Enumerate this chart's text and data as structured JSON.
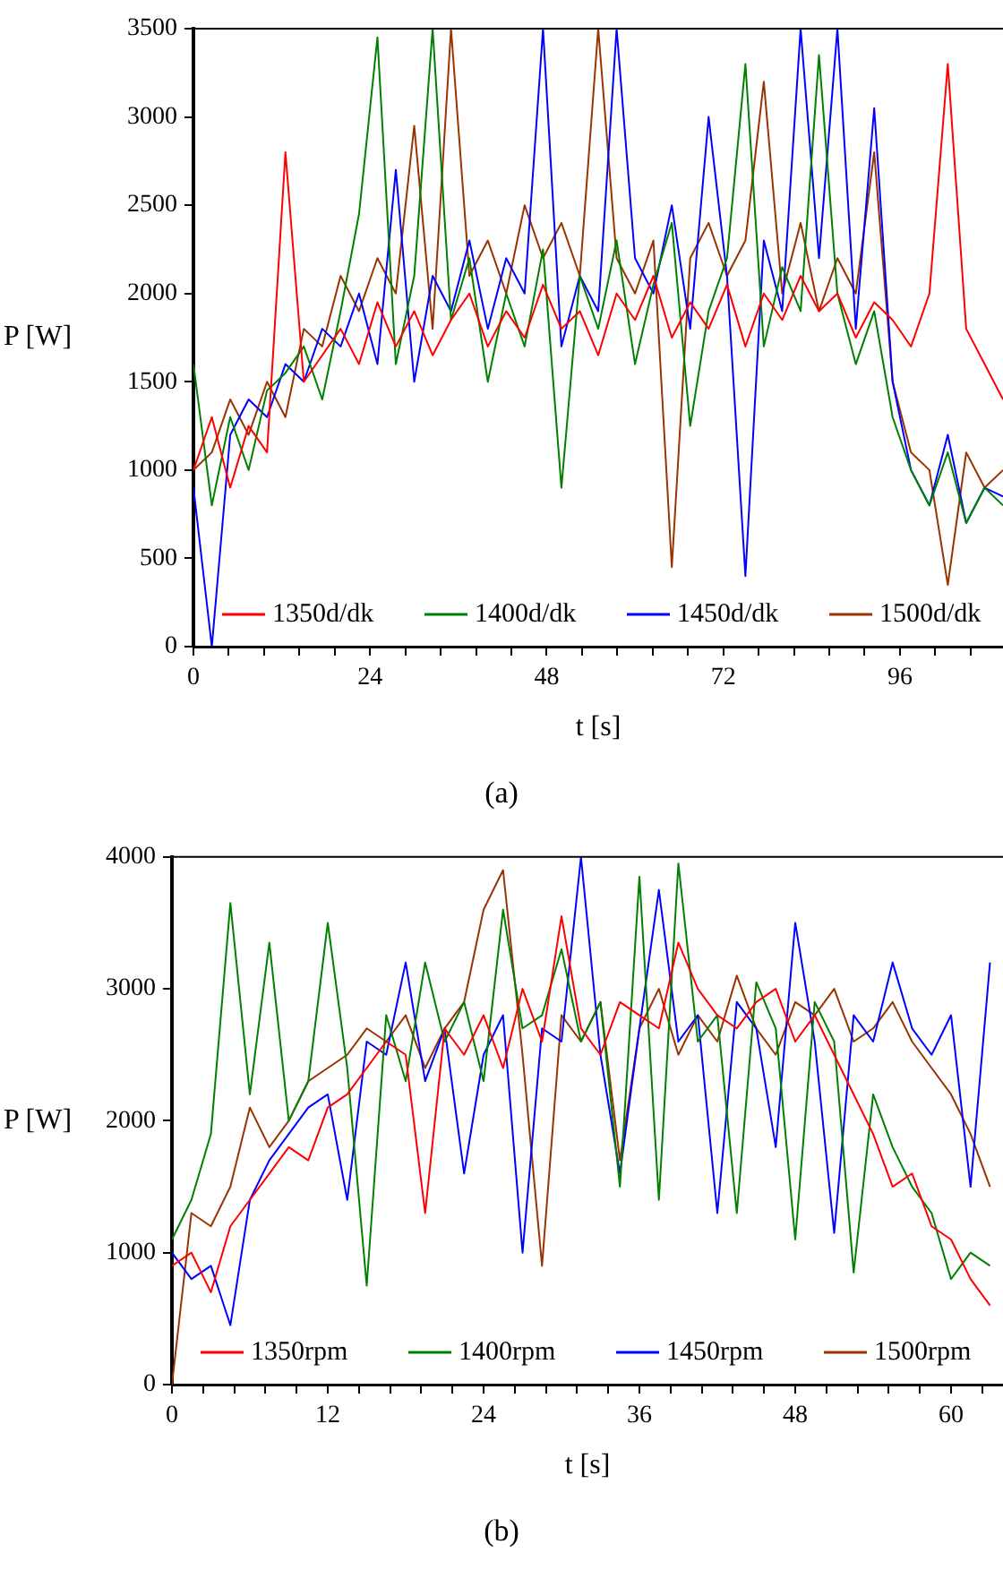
{
  "chart_data": [
    {
      "type": "line",
      "annotations": [
        "(a)"
      ],
      "xlabel": "t [s]",
      "ylabel": "P [W]",
      "legend": "bottom",
      "marker": "none",
      "x": [
        0,
        2.5,
        5,
        7.5,
        10,
        12.5,
        15,
        17.5,
        20,
        22.5,
        25,
        27.5,
        30,
        32.5,
        35,
        37.5,
        40,
        42.5,
        45,
        47.5,
        50,
        52.5,
        55,
        57.5,
        60,
        62.5,
        65,
        67.5,
        70,
        72.5,
        75,
        77.5,
        80,
        82.5,
        85,
        87.5,
        90,
        92.5,
        95,
        97.5,
        100,
        102.5,
        105,
        107.5,
        110
      ],
      "xlim": [
        0,
        110
      ],
      "xticks": [
        0,
        {
          "value": 4.8,
          "label": null
        },
        {
          "value": 9.6,
          "label": null
        },
        {
          "value": 14.4,
          "label": null
        },
        {
          "value": 19.2,
          "label": null
        },
        24,
        {
          "value": 28.8,
          "label": null
        },
        {
          "value": 33.6,
          "label": null
        },
        {
          "value": 38.4,
          "label": null
        },
        {
          "value": 43.2,
          "label": null
        },
        48,
        {
          "value": 52.8,
          "label": null
        },
        {
          "value": 57.6,
          "label": null
        },
        {
          "value": 62.4,
          "label": null
        },
        {
          "value": 67.2,
          "label": null
        },
        72,
        {
          "value": 76.8,
          "label": null
        },
        {
          "value": 81.6,
          "label": null
        },
        {
          "value": 86.4,
          "label": null
        },
        {
          "value": 91.2,
          "label": null
        },
        96,
        {
          "value": 100.8,
          "label": null
        },
        {
          "value": 105.6,
          "label": null
        }
      ],
      "ylim": [
        0,
        3500
      ],
      "yticks": [
        0,
        500,
        1000,
        1500,
        2000,
        2500,
        3000,
        3500
      ],
      "series": [
        {
          "name": "1350d/dk",
          "color": "#ff0000",
          "values": [
            1000,
            1300,
            900,
            1250,
            1100,
            2800,
            1500,
            1650,
            1800,
            1600,
            1950,
            1700,
            1900,
            1650,
            1850,
            2000,
            1700,
            1900,
            1750,
            2050,
            1800,
            1900,
            1650,
            2000,
            1850,
            2100,
            1750,
            1950,
            1800,
            2050,
            1700,
            2000,
            1850,
            2100,
            1900,
            2000,
            1750,
            1950,
            1850,
            1700,
            2000,
            3300,
            1800,
            1600,
            1400
          ]
        },
        {
          "name": "1400d/dk",
          "color": "#008000",
          "values": [
            1600,
            800,
            1300,
            1000,
            1450,
            1550,
            1700,
            1400,
            1900,
            2450,
            3450,
            1600,
            2100,
            3500,
            1850,
            2200,
            1500,
            2000,
            1700,
            2250,
            900,
            2100,
            1800,
            2300,
            1600,
            2050,
            2400,
            1250,
            1900,
            2200,
            3300,
            1700,
            2150,
            1900,
            3350,
            2000,
            1600,
            1900,
            1300,
            1000,
            800,
            1100,
            700,
            900,
            800
          ]
        },
        {
          "name": "1450d/dk",
          "color": "#0000ff",
          "values": [
            900,
            0,
            1200,
            1400,
            1300,
            1600,
            1500,
            1800,
            1700,
            2000,
            1600,
            2700,
            1500,
            2100,
            1900,
            2300,
            1800,
            2200,
            2000,
            3500,
            1700,
            2100,
            1900,
            3500,
            2200,
            2000,
            2500,
            1800,
            3000,
            2100,
            400,
            2300,
            1900,
            3500,
            2200,
            3500,
            1800,
            3050,
            1500,
            1000,
            800,
            1200,
            700,
            900,
            850
          ]
        },
        {
          "name": "1500d/dk",
          "color": "#993300",
          "values": [
            1000,
            1100,
            1400,
            1200,
            1500,
            1300,
            1800,
            1700,
            2100,
            1900,
            2200,
            2000,
            2950,
            1800,
            3500,
            2100,
            2300,
            2000,
            2500,
            2200,
            2400,
            2100,
            3500,
            2200,
            2000,
            2300,
            450,
            2200,
            2400,
            2100,
            2300,
            3200,
            2000,
            2400,
            1900,
            2200,
            2000,
            2800,
            1500,
            1100,
            1000,
            350,
            1100,
            900,
            1000
          ]
        }
      ]
    },
    {
      "type": "line",
      "annotations": [
        "(b)"
      ],
      "xlabel": "t [s]",
      "ylabel": "P [W]",
      "legend": "bottom",
      "marker": "none",
      "x": [
        0,
        1.5,
        3,
        4.5,
        6,
        7.5,
        9,
        10.5,
        12,
        13.5,
        15,
        16.5,
        18,
        19.5,
        21,
        22.5,
        24,
        25.5,
        27,
        28.5,
        30,
        31.5,
        33,
        34.5,
        36,
        37.5,
        39,
        40.5,
        42,
        43.5,
        45,
        46.5,
        48,
        49.5,
        51,
        52.5,
        54,
        55.5,
        57,
        58.5,
        60,
        61.5,
        63
      ],
      "xlim": [
        0,
        64
      ],
      "xticks": [
        0,
        {
          "value": 2.4,
          "label": null
        },
        {
          "value": 4.8,
          "label": null
        },
        {
          "value": 7.2,
          "label": null
        },
        {
          "value": 9.6,
          "label": null
        },
        12,
        {
          "value": 14.4,
          "label": null
        },
        {
          "value": 16.8,
          "label": null
        },
        {
          "value": 19.2,
          "label": null
        },
        {
          "value": 21.6,
          "label": null
        },
        24,
        {
          "value": 26.4,
          "label": null
        },
        {
          "value": 28.8,
          "label": null
        },
        {
          "value": 31.2,
          "label": null
        },
        {
          "value": 33.6,
          "label": null
        },
        36,
        {
          "value": 38.4,
          "label": null
        },
        {
          "value": 40.8,
          "label": null
        },
        {
          "value": 43.2,
          "label": null
        },
        {
          "value": 45.6,
          "label": null
        },
        48,
        {
          "value": 50.4,
          "label": null
        },
        {
          "value": 52.8,
          "label": null
        },
        {
          "value": 55.2,
          "label": null
        },
        {
          "value": 57.6,
          "label": null
        },
        60,
        {
          "value": 62.4,
          "label": null
        }
      ],
      "ylim": [
        0,
        4000
      ],
      "yticks": [
        0,
        1000,
        2000,
        3000,
        4000
      ],
      "series": [
        {
          "name": "1350rpm",
          "color": "#ff0000",
          "values": [
            900,
            1000,
            700,
            1200,
            1400,
            1600,
            1800,
            1700,
            2100,
            2200,
            2400,
            2600,
            2500,
            1300,
            2700,
            2500,
            2800,
            2400,
            3000,
            2600,
            3550,
            2700,
            2500,
            2900,
            2800,
            2700,
            3350,
            3000,
            2800,
            2700,
            2900,
            3000,
            2600,
            2800,
            2500,
            2200,
            1900,
            1500,
            1600,
            1200,
            1100,
            800,
            600
          ]
        },
        {
          "name": "1400rpm",
          "color": "#008000",
          "values": [
            1100,
            1400,
            1900,
            3650,
            2200,
            3350,
            2000,
            2300,
            3500,
            2400,
            750,
            2800,
            2300,
            3200,
            2600,
            2900,
            2300,
            3600,
            2700,
            2800,
            3300,
            2600,
            2900,
            1500,
            3850,
            1400,
            3950,
            2600,
            2800,
            1300,
            3050,
            2700,
            1100,
            2900,
            2600,
            850,
            2200,
            1800,
            1500,
            1300,
            800,
            1000,
            900
          ]
        },
        {
          "name": "1450rpm",
          "color": "#0000ff",
          "values": [
            1000,
            800,
            900,
            450,
            1400,
            1700,
            1900,
            2100,
            2200,
            1400,
            2600,
            2500,
            3200,
            2300,
            2700,
            1600,
            2500,
            2800,
            1000,
            2700,
            2600,
            4000,
            2500,
            1600,
            2700,
            3750,
            2600,
            2800,
            1300,
            2900,
            2700,
            1800,
            3500,
            2600,
            1150,
            2800,
            2600,
            3200,
            2700,
            2500,
            2800,
            1500,
            3200
          ]
        },
        {
          "name": "1500rpm",
          "color": "#993300",
          "values": [
            0,
            1300,
            1200,
            1500,
            2100,
            1800,
            2000,
            2300,
            2400,
            2500,
            2700,
            2600,
            2800,
            2400,
            2700,
            2900,
            3600,
            3900,
            2500,
            900,
            2800,
            2600,
            2900,
            1700,
            2700,
            3000,
            2500,
            2800,
            2600,
            3100,
            2700,
            2500,
            2900,
            2800,
            3000,
            2600,
            2700,
            2900,
            2600,
            2400,
            2200,
            1900,
            1500
          ]
        }
      ]
    }
  ]
}
